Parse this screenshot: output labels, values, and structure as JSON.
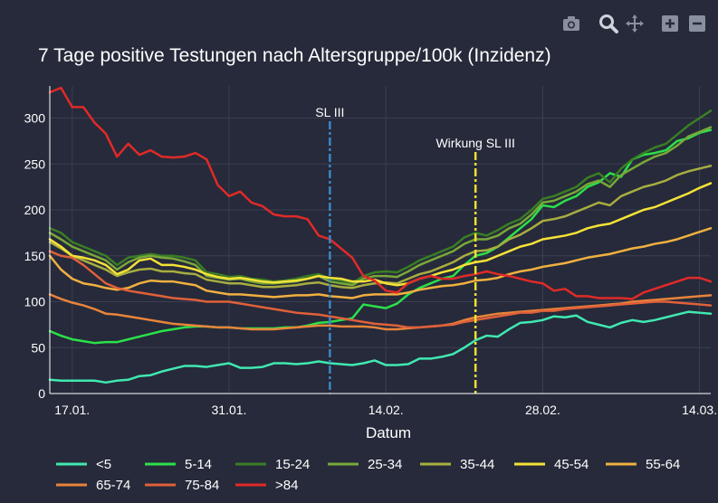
{
  "toolbar": {
    "icons": [
      "camera-icon",
      "zoom-icon",
      "pan-icon",
      "zoom-in-icon",
      "zoom-out-icon"
    ]
  },
  "chart_data": {
    "type": "line",
    "title": "7 Tage positive Testungen nach Altersgruppe/100k (Inzidenz)",
    "xlabel": "Datum",
    "ylabel": "",
    "x_ticks": [
      {
        "label": "17.01.",
        "day": 2
      },
      {
        "label": "31.01.",
        "day": 16
      },
      {
        "label": "14.02.",
        "day": 30
      },
      {
        "label": "28.02.",
        "day": 44
      },
      {
        "label": "14.03.",
        "day": 58
      }
    ],
    "x_start": "15.01.",
    "x_range_days": [
      0,
      59
    ],
    "ylim": [
      0,
      335
    ],
    "y_ticks": [
      0,
      50,
      100,
      150,
      200,
      250,
      300
    ],
    "grid": true,
    "legend_position": "bottom",
    "annotations": [
      {
        "label": "SL III",
        "day": 25,
        "color": "#3b86c6",
        "style": "dashdot"
      },
      {
        "label": "Wirkung SL III",
        "day": 38,
        "color": "#f0e030",
        "style": "dashdot"
      }
    ],
    "series": [
      {
        "name": "<5",
        "color": "#40e8b0",
        "values": [
          15,
          14,
          14,
          14,
          14,
          12,
          14,
          15,
          19,
          20,
          24,
          27,
          30,
          30,
          29,
          31,
          33,
          28,
          28,
          29,
          33,
          33,
          32,
          33,
          35,
          33,
          32,
          31,
          33,
          36,
          31,
          31,
          32,
          38,
          38,
          40,
          43,
          50,
          58,
          63,
          62,
          70,
          77,
          78,
          80,
          84,
          83,
          85,
          78,
          75,
          72,
          77,
          80,
          78,
          80,
          83,
          86,
          89,
          88,
          87
        ]
      },
      {
        "name": "5-14",
        "color": "#2ce04a",
        "values": [
          68,
          63,
          59,
          57,
          55,
          56,
          56,
          59,
          62,
          65,
          68,
          70,
          72,
          73,
          73,
          72,
          72,
          71,
          71,
          71,
          71,
          72,
          72,
          74,
          77,
          78,
          80,
          82,
          97,
          95,
          93,
          98,
          108,
          115,
          120,
          125,
          128,
          140,
          150,
          153,
          160,
          170,
          180,
          190,
          205,
          203,
          210,
          215,
          225,
          230,
          240,
          236,
          255,
          260,
          262,
          265,
          275,
          278,
          284,
          287
        ]
      },
      {
        "name": "15-24",
        "color": "#3a7d25",
        "values": [
          180,
          175,
          165,
          160,
          155,
          150,
          140,
          148,
          150,
          152,
          150,
          150,
          148,
          145,
          132,
          130,
          127,
          128,
          125,
          124,
          122,
          123,
          125,
          128,
          130,
          125,
          123,
          120,
          128,
          132,
          133,
          132,
          138,
          145,
          150,
          155,
          160,
          170,
          175,
          172,
          178,
          185,
          190,
          200,
          212,
          215,
          220,
          225,
          235,
          240,
          230,
          245,
          255,
          262,
          268,
          272,
          282,
          292,
          300,
          308
        ]
      },
      {
        "name": "25-34",
        "color": "#78a838",
        "values": [
          175,
          168,
          160,
          155,
          150,
          145,
          135,
          143,
          148,
          150,
          148,
          147,
          144,
          140,
          128,
          126,
          124,
          125,
          122,
          120,
          120,
          121,
          122,
          125,
          128,
          122,
          120,
          118,
          125,
          128,
          128,
          127,
          133,
          140,
          145,
          150,
          155,
          163,
          168,
          168,
          172,
          180,
          185,
          195,
          208,
          210,
          215,
          220,
          228,
          232,
          225,
          238,
          245,
          252,
          258,
          262,
          270,
          280,
          285,
          290
        ]
      },
      {
        "name": "35-44",
        "color": "#a8ad40",
        "values": [
          165,
          158,
          150,
          145,
          140,
          135,
          128,
          132,
          135,
          136,
          133,
          133,
          131,
          130,
          124,
          122,
          120,
          120,
          118,
          116,
          116,
          117,
          118,
          120,
          121,
          118,
          116,
          115,
          118,
          120,
          121,
          120,
          125,
          130,
          133,
          138,
          143,
          150,
          155,
          156,
          160,
          168,
          173,
          180,
          188,
          190,
          193,
          198,
          203,
          208,
          205,
          215,
          220,
          225,
          228,
          232,
          238,
          242,
          245,
          248
        ]
      },
      {
        "name": "45-54",
        "color": "#f5e236",
        "values": [
          168,
          160,
          150,
          148,
          145,
          140,
          130,
          135,
          145,
          147,
          140,
          140,
          138,
          135,
          130,
          127,
          125,
          126,
          124,
          122,
          121,
          122,
          123,
          125,
          128,
          126,
          125,
          122,
          122,
          124,
          120,
          118,
          120,
          125,
          128,
          132,
          135,
          140,
          143,
          145,
          150,
          155,
          160,
          163,
          168,
          170,
          172,
          175,
          180,
          183,
          185,
          190,
          195,
          200,
          203,
          208,
          213,
          218,
          224,
          229
        ]
      },
      {
        "name": "55-64",
        "color": "#f0b040",
        "values": [
          150,
          135,
          125,
          120,
          118,
          115,
          113,
          115,
          120,
          123,
          122,
          122,
          120,
          118,
          112,
          110,
          108,
          108,
          107,
          106,
          105,
          106,
          107,
          107,
          108,
          106,
          105,
          104,
          107,
          108,
          108,
          108,
          110,
          113,
          115,
          117,
          118,
          120,
          123,
          124,
          126,
          130,
          133,
          135,
          138,
          140,
          142,
          145,
          148,
          150,
          152,
          155,
          158,
          160,
          163,
          165,
          168,
          172,
          176,
          180
        ]
      },
      {
        "name": "65-74",
        "color": "#e8843a",
        "values": [
          108,
          103,
          99,
          96,
          92,
          87,
          86,
          84,
          82,
          80,
          78,
          76,
          75,
          74,
          73,
          72,
          72,
          71,
          70,
          70,
          70,
          71,
          72,
          73,
          74,
          74,
          73,
          73,
          73,
          72,
          70,
          70,
          71,
          72,
          73,
          74,
          76,
          80,
          83,
          85,
          87,
          88,
          89,
          90,
          91,
          92,
          93,
          94,
          95,
          96,
          97,
          98,
          100,
          101,
          102,
          103,
          104,
          105,
          106,
          107
        ]
      },
      {
        "name": "75-84",
        "color": "#e0603a",
        "values": [
          155,
          150,
          148,
          140,
          130,
          120,
          115,
          112,
          110,
          108,
          106,
          104,
          103,
          102,
          100,
          100,
          100,
          98,
          96,
          94,
          92,
          90,
          88,
          87,
          86,
          84,
          82,
          80,
          78,
          76,
          75,
          74,
          72,
          72,
          73,
          74,
          75,
          78,
          80,
          82,
          84,
          86,
          88,
          88,
          90,
          90,
          92,
          93,
          94,
          95,
          96,
          97,
          98,
          99,
          100,
          100,
          99,
          98,
          97,
          96
        ]
      },
      {
        "name": ">84",
        "color": "#e02a28",
        "values": [
          328,
          333,
          312,
          312,
          295,
          283,
          258,
          272,
          260,
          265,
          258,
          257,
          258,
          262,
          255,
          227,
          215,
          220,
          208,
          204,
          195,
          193,
          193,
          190,
          172,
          168,
          158,
          148,
          128,
          123,
          112,
          110,
          120,
          125,
          128,
          125,
          125,
          128,
          130,
          133,
          130,
          128,
          125,
          122,
          120,
          112,
          114,
          106,
          106,
          104,
          104,
          104,
          103,
          110,
          114,
          118,
          122,
          126,
          126,
          122
        ]
      }
    ]
  }
}
